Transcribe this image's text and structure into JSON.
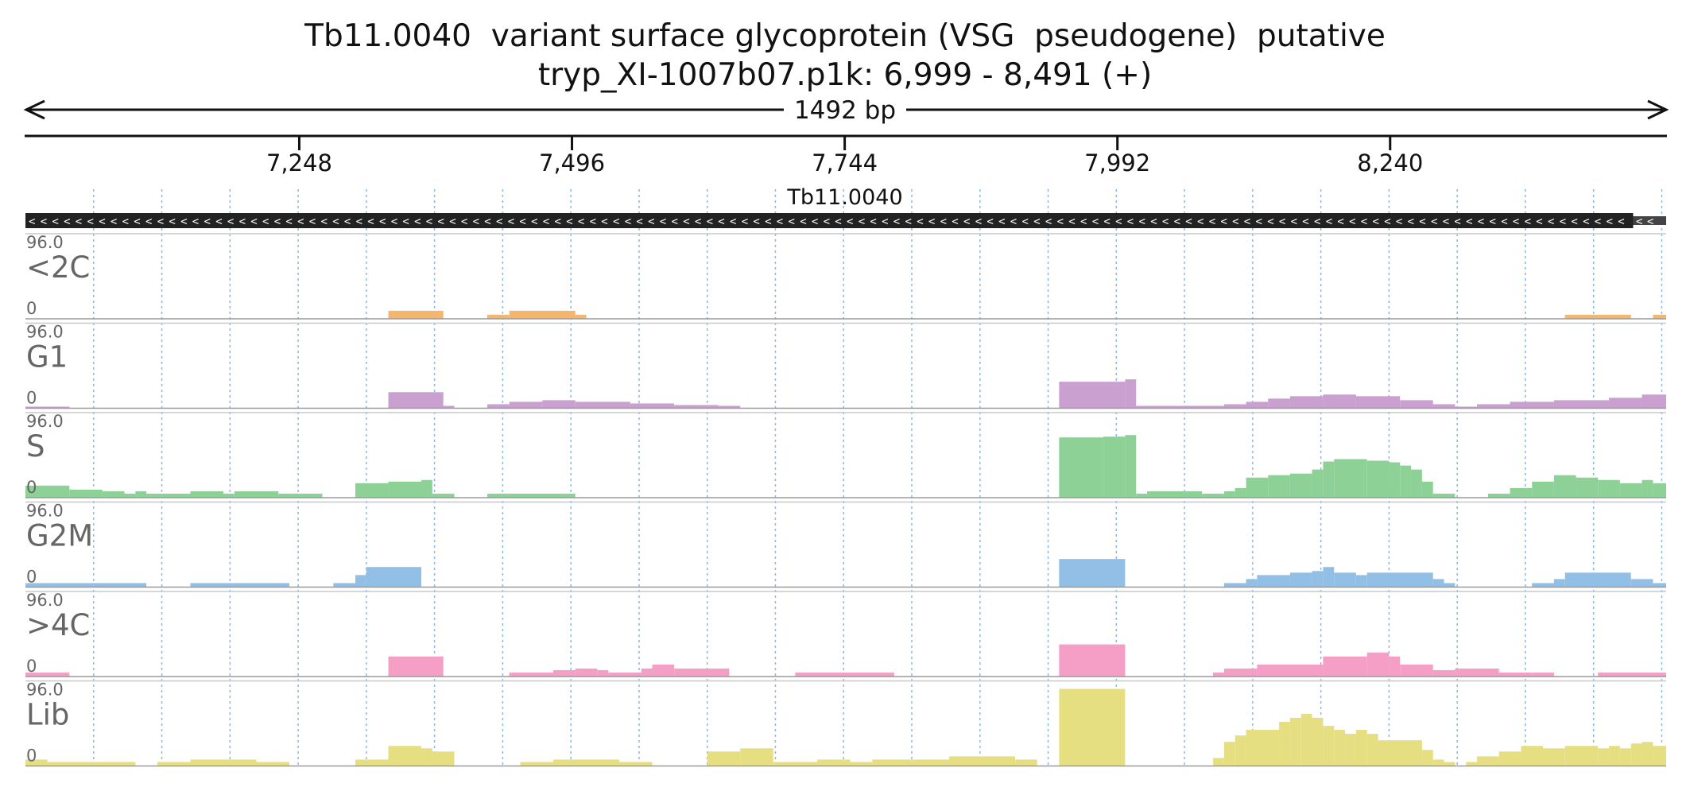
{
  "chart_data": {
    "type": "bar",
    "title": "Tb11.0040  variant surface glycoprotein (VSG  pseudogene)  putative",
    "subtitle": "tryp_XI-1007b07.p1k: 6,999 - 8,491 (+)",
    "span_label": "1492 bp",
    "xlim": [
      6999,
      8491
    ],
    "x_ticks": [
      {
        "value": 7248,
        "label": "7,248"
      },
      {
        "value": 7496,
        "label": "7,496"
      },
      {
        "value": 7744,
        "label": "7,744"
      },
      {
        "value": 7992,
        "label": "7,992"
      },
      {
        "value": 8240,
        "label": "8,240"
      }
    ],
    "gene": {
      "name": "Tb11.0040",
      "start": 6999,
      "end": 8461,
      "strand": "-",
      "color": "#222222"
    },
    "grid": true,
    "bin_size": 20,
    "tracks": [
      {
        "name": "<2C",
        "max_label": "96.0",
        "min_label": "0",
        "ylim": [
          0,
          96
        ],
        "color": "#f5b56a",
        "bins": [
          {
            "start": 7329,
            "end": 7379,
            "value": 10
          },
          {
            "start": 7419,
            "end": 7439,
            "value": 5
          },
          {
            "start": 7439,
            "end": 7499,
            "value": 10
          },
          {
            "start": 7499,
            "end": 7509,
            "value": 5
          },
          {
            "start": 8399,
            "end": 8459,
            "value": 5
          },
          {
            "start": 8479,
            "end": 8491,
            "value": 5
          }
        ]
      },
      {
        "name": "G1",
        "max_label": "96.0",
        "min_label": "0",
        "ylim": [
          0,
          96
        ],
        "color": "#c9a0d0",
        "bins": [
          {
            "start": 6999,
            "end": 7039,
            "value": 2
          },
          {
            "start": 7329,
            "end": 7379,
            "value": 20
          },
          {
            "start": 7379,
            "end": 7389,
            "value": 3
          },
          {
            "start": 7419,
            "end": 7439,
            "value": 5
          },
          {
            "start": 7439,
            "end": 7469,
            "value": 8
          },
          {
            "start": 7469,
            "end": 7499,
            "value": 10
          },
          {
            "start": 7499,
            "end": 7549,
            "value": 8
          },
          {
            "start": 7549,
            "end": 7589,
            "value": 6
          },
          {
            "start": 7589,
            "end": 7629,
            "value": 4
          },
          {
            "start": 7629,
            "end": 7649,
            "value": 3
          },
          {
            "start": 7939,
            "end": 7999,
            "value": 33
          },
          {
            "start": 7999,
            "end": 8009,
            "value": 36
          },
          {
            "start": 8009,
            "end": 8089,
            "value": 3
          },
          {
            "start": 8089,
            "end": 8109,
            "value": 5
          },
          {
            "start": 8109,
            "end": 8129,
            "value": 8
          },
          {
            "start": 8129,
            "end": 8149,
            "value": 12
          },
          {
            "start": 8149,
            "end": 8179,
            "value": 15
          },
          {
            "start": 8179,
            "end": 8209,
            "value": 17
          },
          {
            "start": 8209,
            "end": 8249,
            "value": 15
          },
          {
            "start": 8249,
            "end": 8279,
            "value": 10
          },
          {
            "start": 8279,
            "end": 8299,
            "value": 5
          },
          {
            "start": 8299,
            "end": 8319,
            "value": 2
          },
          {
            "start": 8319,
            "end": 8349,
            "value": 5
          },
          {
            "start": 8349,
            "end": 8389,
            "value": 8
          },
          {
            "start": 8389,
            "end": 8439,
            "value": 10
          },
          {
            "start": 8439,
            "end": 8469,
            "value": 13
          },
          {
            "start": 8469,
            "end": 8491,
            "value": 17
          }
        ]
      },
      {
        "name": "S",
        "max_label": "96.0",
        "min_label": "0",
        "ylim": [
          0,
          96
        ],
        "color": "#8ed196",
        "bins": [
          {
            "start": 6999,
            "end": 7039,
            "value": 15
          },
          {
            "start": 7039,
            "end": 7069,
            "value": 10
          },
          {
            "start": 7069,
            "end": 7089,
            "value": 8
          },
          {
            "start": 7089,
            "end": 7099,
            "value": 5
          },
          {
            "start": 7099,
            "end": 7109,
            "value": 8
          },
          {
            "start": 7109,
            "end": 7149,
            "value": 5
          },
          {
            "start": 7149,
            "end": 7179,
            "value": 8
          },
          {
            "start": 7179,
            "end": 7189,
            "value": 5
          },
          {
            "start": 7189,
            "end": 7229,
            "value": 8
          },
          {
            "start": 7229,
            "end": 7269,
            "value": 5
          },
          {
            "start": 7299,
            "end": 7329,
            "value": 18
          },
          {
            "start": 7329,
            "end": 7359,
            "value": 20
          },
          {
            "start": 7359,
            "end": 7369,
            "value": 22
          },
          {
            "start": 7369,
            "end": 7389,
            "value": 5
          },
          {
            "start": 7419,
            "end": 7499,
            "value": 5
          },
          {
            "start": 7939,
            "end": 7979,
            "value": 75
          },
          {
            "start": 7979,
            "end": 7999,
            "value": 76
          },
          {
            "start": 7999,
            "end": 8009,
            "value": 78
          },
          {
            "start": 8009,
            "end": 8019,
            "value": 5
          },
          {
            "start": 8019,
            "end": 8069,
            "value": 8
          },
          {
            "start": 8069,
            "end": 8089,
            "value": 5
          },
          {
            "start": 8089,
            "end": 8099,
            "value": 8
          },
          {
            "start": 8099,
            "end": 8109,
            "value": 12
          },
          {
            "start": 8109,
            "end": 8129,
            "value": 25
          },
          {
            "start": 8129,
            "end": 8149,
            "value": 28
          },
          {
            "start": 8149,
            "end": 8169,
            "value": 30
          },
          {
            "start": 8169,
            "end": 8179,
            "value": 35
          },
          {
            "start": 8179,
            "end": 8189,
            "value": 45
          },
          {
            "start": 8189,
            "end": 8219,
            "value": 48
          },
          {
            "start": 8219,
            "end": 8239,
            "value": 46
          },
          {
            "start": 8239,
            "end": 8249,
            "value": 44
          },
          {
            "start": 8249,
            "end": 8259,
            "value": 40
          },
          {
            "start": 8259,
            "end": 8269,
            "value": 35
          },
          {
            "start": 8269,
            "end": 8279,
            "value": 20
          },
          {
            "start": 8279,
            "end": 8299,
            "value": 5
          },
          {
            "start": 8329,
            "end": 8349,
            "value": 5
          },
          {
            "start": 8349,
            "end": 8369,
            "value": 12
          },
          {
            "start": 8369,
            "end": 8389,
            "value": 20
          },
          {
            "start": 8389,
            "end": 8409,
            "value": 28
          },
          {
            "start": 8409,
            "end": 8429,
            "value": 25
          },
          {
            "start": 8429,
            "end": 8449,
            "value": 22
          },
          {
            "start": 8449,
            "end": 8469,
            "value": 18
          },
          {
            "start": 8469,
            "end": 8479,
            "value": 22
          },
          {
            "start": 8479,
            "end": 8491,
            "value": 18
          }
        ]
      },
      {
        "name": "G2M",
        "max_label": "96.0",
        "min_label": "0",
        "ylim": [
          0,
          96
        ],
        "color": "#92bfe6",
        "bins": [
          {
            "start": 6999,
            "end": 7109,
            "value": 5
          },
          {
            "start": 7149,
            "end": 7239,
            "value": 5
          },
          {
            "start": 7279,
            "end": 7299,
            "value": 5
          },
          {
            "start": 7299,
            "end": 7309,
            "value": 15
          },
          {
            "start": 7309,
            "end": 7359,
            "value": 25
          },
          {
            "start": 7939,
            "end": 7999,
            "value": 35
          },
          {
            "start": 8089,
            "end": 8109,
            "value": 5
          },
          {
            "start": 8109,
            "end": 8119,
            "value": 10
          },
          {
            "start": 8119,
            "end": 8149,
            "value": 15
          },
          {
            "start": 8149,
            "end": 8169,
            "value": 18
          },
          {
            "start": 8169,
            "end": 8179,
            "value": 20
          },
          {
            "start": 8179,
            "end": 8189,
            "value": 25
          },
          {
            "start": 8189,
            "end": 8209,
            "value": 18
          },
          {
            "start": 8209,
            "end": 8219,
            "value": 15
          },
          {
            "start": 8219,
            "end": 8279,
            "value": 18
          },
          {
            "start": 8279,
            "end": 8289,
            "value": 10
          },
          {
            "start": 8289,
            "end": 8299,
            "value": 5
          },
          {
            "start": 8369,
            "end": 8389,
            "value": 5
          },
          {
            "start": 8389,
            "end": 8399,
            "value": 10
          },
          {
            "start": 8399,
            "end": 8459,
            "value": 18
          },
          {
            "start": 8459,
            "end": 8479,
            "value": 10
          },
          {
            "start": 8479,
            "end": 8491,
            "value": 5
          }
        ]
      },
      {
        "name": ">4C",
        "max_label": "96.0",
        "min_label": "0",
        "ylim": [
          0,
          96
        ],
        "color": "#f59ec6",
        "bins": [
          {
            "start": 6999,
            "end": 7039,
            "value": 5
          },
          {
            "start": 7329,
            "end": 7379,
            "value": 25
          },
          {
            "start": 7439,
            "end": 7479,
            "value": 5
          },
          {
            "start": 7479,
            "end": 7499,
            "value": 8
          },
          {
            "start": 7499,
            "end": 7519,
            "value": 10
          },
          {
            "start": 7519,
            "end": 7529,
            "value": 8
          },
          {
            "start": 7529,
            "end": 7559,
            "value": 5
          },
          {
            "start": 7559,
            "end": 7569,
            "value": 10
          },
          {
            "start": 7569,
            "end": 7589,
            "value": 15
          },
          {
            "start": 7589,
            "end": 7639,
            "value": 10
          },
          {
            "start": 7699,
            "end": 7789,
            "value": 5
          },
          {
            "start": 7939,
            "end": 7999,
            "value": 40
          },
          {
            "start": 8079,
            "end": 8089,
            "value": 5
          },
          {
            "start": 8089,
            "end": 8119,
            "value": 10
          },
          {
            "start": 8119,
            "end": 8179,
            "value": 15
          },
          {
            "start": 8179,
            "end": 8219,
            "value": 25
          },
          {
            "start": 8219,
            "end": 8239,
            "value": 30
          },
          {
            "start": 8239,
            "end": 8249,
            "value": 25
          },
          {
            "start": 8249,
            "end": 8279,
            "value": 15
          },
          {
            "start": 8279,
            "end": 8299,
            "value": 8
          },
          {
            "start": 8299,
            "end": 8339,
            "value": 10
          },
          {
            "start": 8339,
            "end": 8369,
            "value": 5
          },
          {
            "start": 8369,
            "end": 8389,
            "value": 5
          },
          {
            "start": 8429,
            "end": 8491,
            "value": 5
          }
        ]
      },
      {
        "name": "Lib",
        "max_label": "96.0",
        "min_label": "0",
        "ylim": [
          0,
          96
        ],
        "color": "#e6df82",
        "bins": [
          {
            "start": 6999,
            "end": 7019,
            "value": 8
          },
          {
            "start": 7019,
            "end": 7099,
            "value": 5
          },
          {
            "start": 7119,
            "end": 7149,
            "value": 5
          },
          {
            "start": 7149,
            "end": 7209,
            "value": 8
          },
          {
            "start": 7209,
            "end": 7239,
            "value": 5
          },
          {
            "start": 7299,
            "end": 7329,
            "value": 8
          },
          {
            "start": 7329,
            "end": 7359,
            "value": 25
          },
          {
            "start": 7359,
            "end": 7369,
            "value": 22
          },
          {
            "start": 7369,
            "end": 7389,
            "value": 18
          },
          {
            "start": 7449,
            "end": 7479,
            "value": 5
          },
          {
            "start": 7479,
            "end": 7539,
            "value": 8
          },
          {
            "start": 7539,
            "end": 7569,
            "value": 5
          },
          {
            "start": 7619,
            "end": 7649,
            "value": 18
          },
          {
            "start": 7649,
            "end": 7679,
            "value": 22
          },
          {
            "start": 7679,
            "end": 7719,
            "value": 5
          },
          {
            "start": 7719,
            "end": 7749,
            "value": 8
          },
          {
            "start": 7749,
            "end": 7769,
            "value": 5
          },
          {
            "start": 7769,
            "end": 7839,
            "value": 8
          },
          {
            "start": 7839,
            "end": 7899,
            "value": 12
          },
          {
            "start": 7899,
            "end": 7919,
            "value": 8
          },
          {
            "start": 7939,
            "end": 7999,
            "value": 96
          },
          {
            "start": 8079,
            "end": 8089,
            "value": 10
          },
          {
            "start": 8089,
            "end": 8099,
            "value": 30
          },
          {
            "start": 8099,
            "end": 8109,
            "value": 38
          },
          {
            "start": 8109,
            "end": 8139,
            "value": 45
          },
          {
            "start": 8139,
            "end": 8149,
            "value": 55
          },
          {
            "start": 8149,
            "end": 8159,
            "value": 60
          },
          {
            "start": 8159,
            "end": 8169,
            "value": 65
          },
          {
            "start": 8169,
            "end": 8179,
            "value": 60
          },
          {
            "start": 8179,
            "end": 8189,
            "value": 50
          },
          {
            "start": 8189,
            "end": 8199,
            "value": 45
          },
          {
            "start": 8199,
            "end": 8209,
            "value": 40
          },
          {
            "start": 8209,
            "end": 8219,
            "value": 45
          },
          {
            "start": 8219,
            "end": 8229,
            "value": 40
          },
          {
            "start": 8229,
            "end": 8269,
            "value": 32
          },
          {
            "start": 8269,
            "end": 8279,
            "value": 20
          },
          {
            "start": 8279,
            "end": 8289,
            "value": 8
          },
          {
            "start": 8289,
            "end": 8299,
            "value": 5
          },
          {
            "start": 8309,
            "end": 8319,
            "value": 5
          },
          {
            "start": 8319,
            "end": 8339,
            "value": 12
          },
          {
            "start": 8339,
            "end": 8359,
            "value": 18
          },
          {
            "start": 8359,
            "end": 8379,
            "value": 25
          },
          {
            "start": 8379,
            "end": 8399,
            "value": 22
          },
          {
            "start": 8399,
            "end": 8429,
            "value": 25
          },
          {
            "start": 8429,
            "end": 8439,
            "value": 22
          },
          {
            "start": 8439,
            "end": 8449,
            "value": 25
          },
          {
            "start": 8449,
            "end": 8459,
            "value": 22
          },
          {
            "start": 8459,
            "end": 8469,
            "value": 28
          },
          {
            "start": 8469,
            "end": 8479,
            "value": 30
          },
          {
            "start": 8479,
            "end": 8491,
            "value": 25
          }
        ]
      }
    ]
  }
}
